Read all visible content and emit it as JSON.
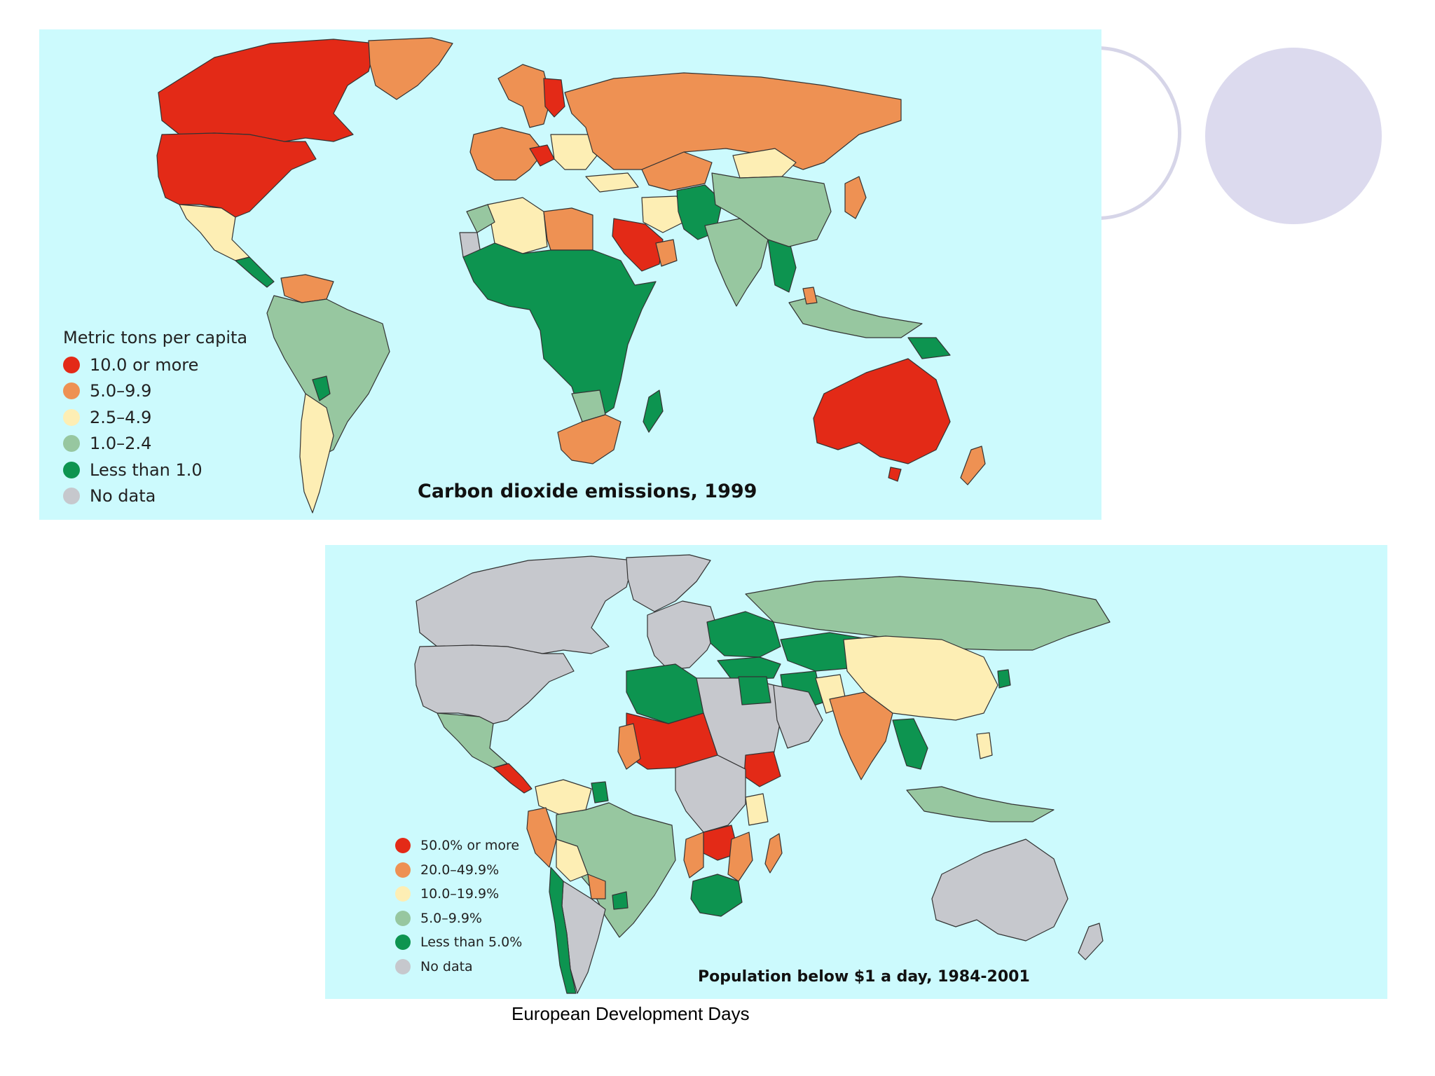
{
  "colors": {
    "ocean": "#ccfafd",
    "red": "#e32a17",
    "orange": "#ee9153",
    "pale_yellow": "#fdeeb4",
    "light_green": "#97c7a0",
    "dark_green": "#0d9450",
    "grey": "#c6c8cd",
    "border": "#333333",
    "deco": "#dcdaee"
  },
  "map1": {
    "title": "Carbon dioxide emissions, 1999",
    "legend_title": "Metric tons per capita",
    "legend": [
      {
        "label": "10.0 or more",
        "color": "#e32a17"
      },
      {
        "label": "5.0–9.9",
        "color": "#ee9153"
      },
      {
        "label": "2.5–4.9",
        "color": "#fdeeb4"
      },
      {
        "label": "1.0–2.4",
        "color": "#97c7a0"
      },
      {
        "label": "Less than 1.0",
        "color": "#0d9450"
      },
      {
        "label": "No data",
        "color": "#c6c8cd"
      }
    ]
  },
  "map2": {
    "title": "Population below $1 a day, 1984-2001",
    "legend": [
      {
        "label": "50.0% or more",
        "color": "#e32a17"
      },
      {
        "label": "20.0–49.9%",
        "color": "#ee9153"
      },
      {
        "label": "10.0–19.9%",
        "color": "#fdeeb4"
      },
      {
        "label": "5.0–9.9%",
        "color": "#97c7a0"
      },
      {
        "label": "Less than 5.0%",
        "color": "#0d9450"
      },
      {
        "label": "No data",
        "color": "#c6c8cd"
      }
    ]
  },
  "caption": "European Development Days"
}
